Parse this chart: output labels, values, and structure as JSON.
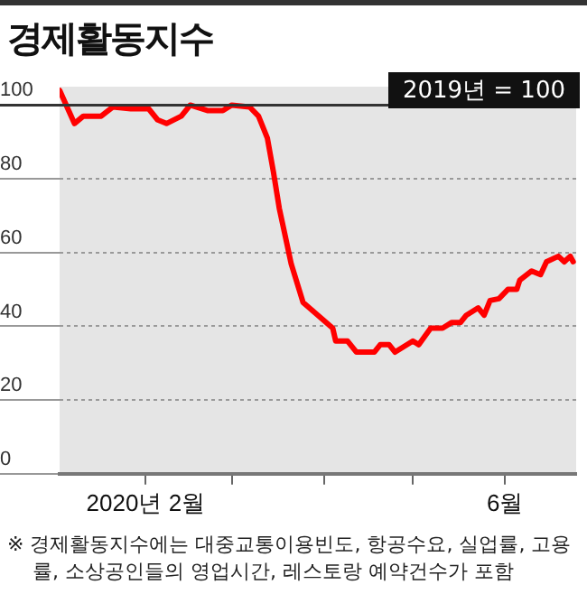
{
  "chart_data": {
    "type": "line",
    "title": "경제활동지수",
    "annotations": [
      "2019년 = 100",
      "※ 경제활동지수에는 대중교통이용빈도, 항공수요, 실업률, 고용률, 소상공인들의 영업시간, 레스토랑 예약건수가 포함"
    ],
    "x": [
      "2020-01-03",
      "2020-01-08",
      "2020-01-11",
      "2020-01-17",
      "2020-01-21",
      "2020-01-27",
      "2020-02-02",
      "2020-02-05",
      "2020-02-08",
      "2020-02-13",
      "2020-02-16",
      "2020-02-22",
      "2020-02-27",
      "2020-03-01",
      "2020-03-07",
      "2020-03-10",
      "2020-03-13",
      "2020-03-15",
      "2020-03-17",
      "2020-03-21",
      "2020-03-25",
      "2020-03-30",
      "2020-04-04",
      "2020-04-05",
      "2020-04-09",
      "2020-04-12",
      "2020-04-18",
      "2020-04-20",
      "2020-04-23",
      "2020-04-25",
      "2020-05-01",
      "2020-05-03",
      "2020-05-07",
      "2020-05-11",
      "2020-05-14",
      "2020-05-17",
      "2020-05-19",
      "2020-05-23",
      "2020-05-25",
      "2020-05-27",
      "2020-05-30",
      "2020-06-02",
      "2020-06-05",
      "2020-06-06",
      "2020-06-10",
      "2020-06-13",
      "2020-06-15",
      "2020-06-19",
      "2020-06-21",
      "2020-06-23",
      "2020-06-24"
    ],
    "series": [
      {
        "color": "#ff0000",
        "values": [
          104,
          95,
          97,
          97,
          99.5,
          99,
          99,
          96,
          95,
          97,
          100,
          98.5,
          98.5,
          100,
          99.5,
          97,
          91,
          82,
          72,
          57,
          46.5,
          43,
          39.5,
          36,
          36,
          33,
          33,
          35,
          35,
          33,
          36,
          35,
          39.5,
          39.5,
          41,
          41,
          43,
          45,
          43,
          47,
          47.5,
          50,
          50,
          52.5,
          55,
          54,
          57.5,
          59,
          57.5,
          59,
          57.5
        ]
      }
    ],
    "xlim": [
      "2020-01-03",
      "2020-06-25"
    ],
    "xticks": [
      {
        "value": "2020-02-01",
        "label": "2020년 2월"
      },
      {
        "value": "2020-03-01",
        "label": null
      },
      {
        "value": "2020-04-01",
        "label": null
      },
      {
        "value": "2020-05-01",
        "label": null
      },
      {
        "value": "2020-06-01",
        "label": "6월"
      }
    ],
    "ylim": [
      0,
      105
    ],
    "yticks": [
      0,
      20,
      40,
      60,
      80,
      100
    ],
    "ref_lines": [
      {
        "axis": "y",
        "value": 100,
        "color": "#333333",
        "line_style": "solid"
      }
    ],
    "grid": "y",
    "legend": false,
    "marker": "none",
    "line_style": "solid"
  }
}
